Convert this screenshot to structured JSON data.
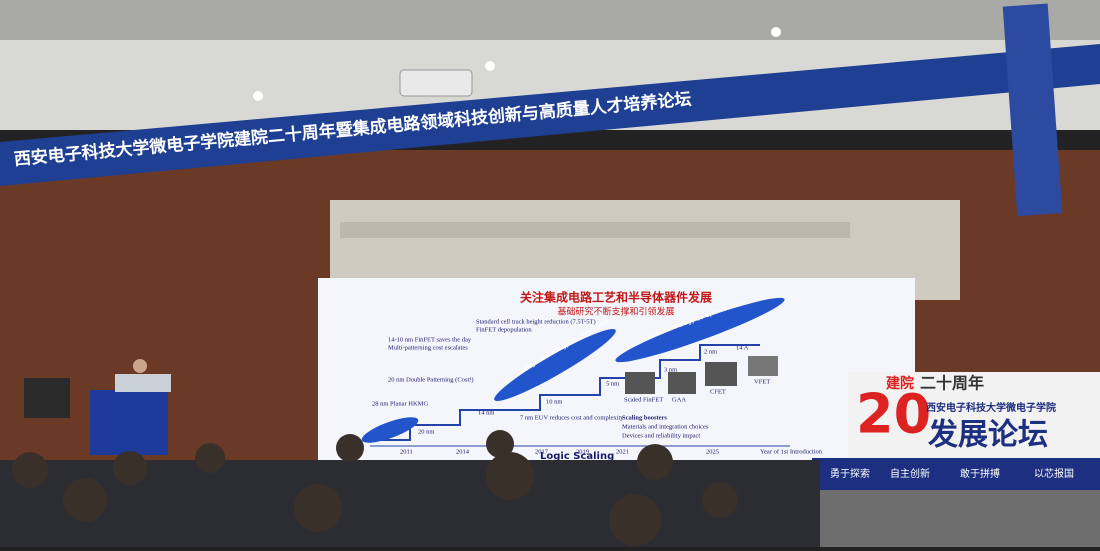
{
  "banner": {
    "text": "西安电子科技大学微电子学院建院二十周年暨集成电路领域科技创新与高质量人才培养论坛"
  },
  "slide": {
    "title": "关注集成电路工艺和半导体器件发展",
    "subtitle": "基础研究不断支撑和引领发展",
    "x_axis_label": "Logic Scaling",
    "intro_label": "Year of 1st Introduction",
    "years": [
      "2011",
      "2014",
      "2017",
      "2019",
      "2021",
      "2025"
    ],
    "nodes": [
      "20 nm",
      "14 nm",
      "10 nm",
      "5 nm",
      "3 nm",
      "2 nm",
      "14 A"
    ],
    "notes": [
      "Standard cell track height reduction (7.5T-5T)",
      "FinFET depopulation",
      "14-10 nm FinFET saves the day",
      "Multi-patterning cost escalates",
      "20 nm Double Patterning (Cost!)",
      "28 nm Planar HKMG",
      "7 nm EUV reduces cost and complexity",
      "Design Technology Co-optimization",
      "System Technology Co-optimization"
    ],
    "boosters_title": "Scaling boosters",
    "bullets": [
      "Materials and integration choices",
      "Devices and reliability impact"
    ],
    "device_labels": [
      "Scaled FinFET",
      "GAA",
      "CFET",
      "VFET"
    ]
  },
  "board": {
    "prefix": "建院",
    "title": "二十周年",
    "number": "20",
    "school": "西安电子科技大学微电子学院",
    "forum": "发展论坛",
    "slogans": [
      "勇于探索",
      "自主创新",
      "敢于拼搏",
      "以芯报国"
    ]
  }
}
